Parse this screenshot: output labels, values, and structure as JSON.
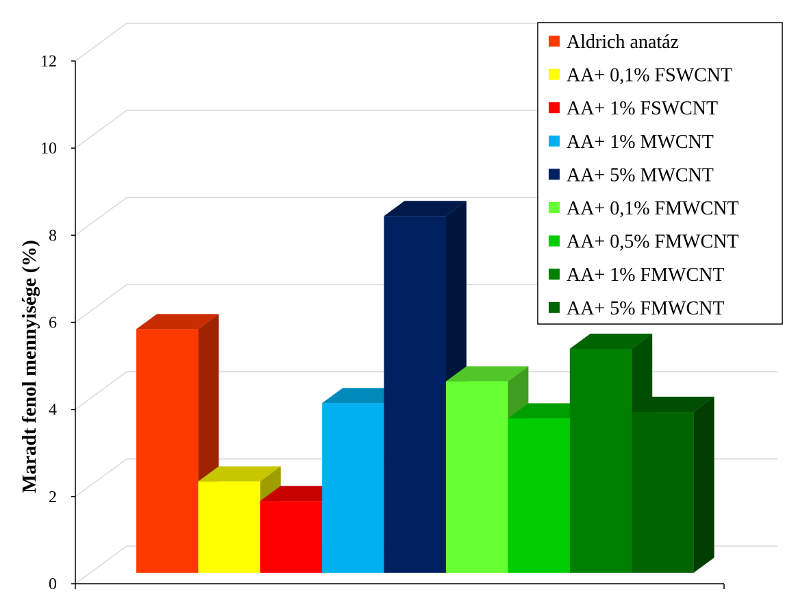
{
  "chart_data": {
    "type": "bar",
    "style": "3d-clustered-column",
    "title": "",
    "xlabel": "",
    "ylabel": "Maradt fenol mennyisége (%)",
    "ylim": [
      0,
      12
    ],
    "yticks": [
      "0",
      "2",
      "4",
      "6",
      "8",
      "10",
      "12"
    ],
    "grid": true,
    "legend_position": "top-right",
    "series": [
      {
        "name": "Aldrich anatáz",
        "value": 5.6,
        "color": "#FF3A00"
      },
      {
        "name": "AA+  0,1% FSWCNT",
        "value": 2.1,
        "color": "#FFFF00"
      },
      {
        "name": "AA+ 1% FSWCNT",
        "value": 1.65,
        "color": "#FF0000"
      },
      {
        "name": "AA+ 1% MWCNT",
        "value": 3.9,
        "color": "#00B0F0"
      },
      {
        "name": "AA+ 5% MWCNT",
        "value": 8.2,
        "color": "#002060"
      },
      {
        "name": "AA+ 0,1% FMWCNT",
        "value": 4.4,
        "color": "#66FF33"
      },
      {
        "name": "AA+  0,5% FMWCNT",
        "value": 3.55,
        "color": "#00CC00"
      },
      {
        "name": "AA+ 1% FMWCNT",
        "value": 5.15,
        "color": "#008000"
      },
      {
        "name": "AA+ 5% FMWCNT",
        "value": 3.7,
        "color": "#006400"
      }
    ]
  }
}
